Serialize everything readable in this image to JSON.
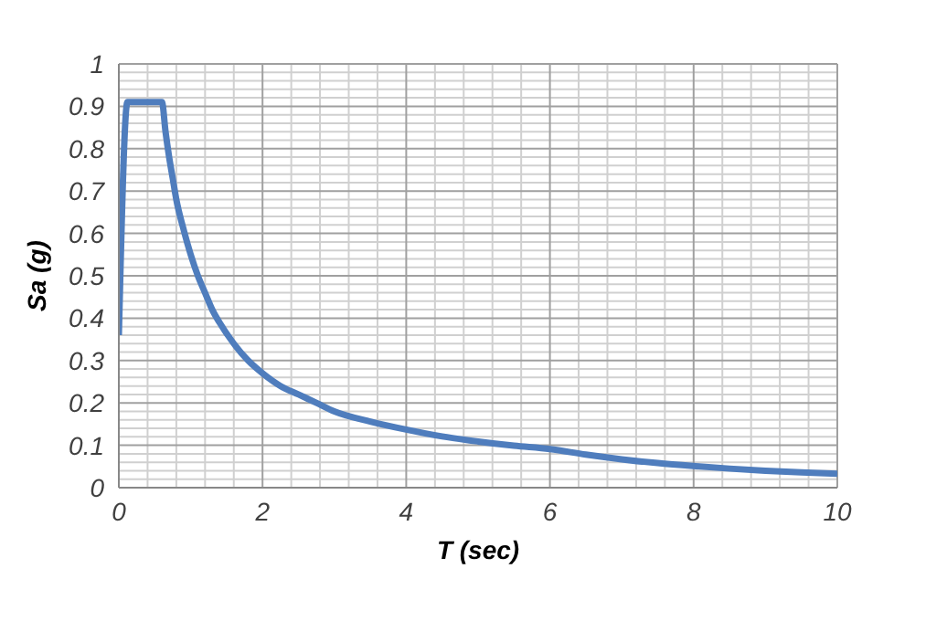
{
  "chart_data": {
    "type": "line",
    "xlabel": "T (sec)",
    "ylabel": "Sa (g)",
    "x": [
      0,
      0.12,
      0.6,
      0.65,
      0.7,
      0.75,
      0.8,
      0.9,
      1.0,
      1.1,
      1.2,
      1.3,
      1.4,
      1.6,
      1.8,
      2,
      2.25,
      2.5,
      2.75,
      3,
      3.5,
      4,
      4.5,
      5,
      5.5,
      6,
      6.5,
      7,
      7.5,
      8,
      8.5,
      9,
      9.5,
      10
    ],
    "series": [
      {
        "color": "#4f7dbd",
        "values": [
          0.36,
          0.91,
          0.91,
          0.84,
          0.78,
          0.73,
          0.68,
          0.61,
          0.55,
          0.5,
          0.46,
          0.42,
          0.39,
          0.34,
          0.3,
          0.27,
          0.24,
          0.22,
          0.2,
          0.18,
          0.156,
          0.137,
          0.121,
          0.109,
          0.099,
          0.091,
          0.078,
          0.067,
          0.058,
          0.051,
          0.045,
          0.04,
          0.036,
          0.033
        ]
      }
    ],
    "xlim": [
      0,
      10
    ],
    "xticks": [
      0,
      2,
      4,
      6,
      8,
      10
    ],
    "ylim": [
      0,
      1
    ],
    "yticks": [
      0,
      0.1,
      0.2,
      0.3,
      0.4,
      0.5,
      0.6,
      0.7,
      0.8,
      0.9,
      1
    ],
    "grid": true,
    "marker": "none",
    "line_style": "solid"
  }
}
